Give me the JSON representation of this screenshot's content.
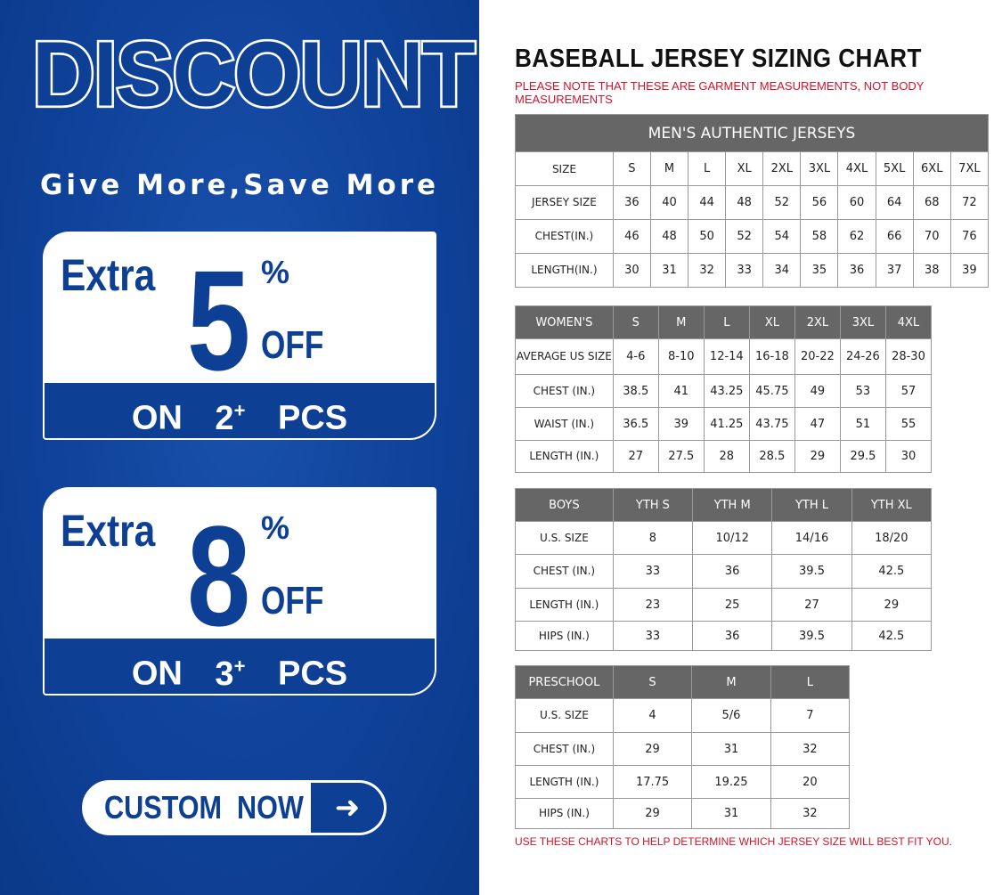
{
  "promo": {
    "headline": "DISCOUNT",
    "slogan": "Give More,Save More",
    "offers": [
      {
        "extra": "Extra",
        "amount": "5",
        "percent": "%",
        "off": "OFF",
        "on": "ON",
        "qty": "2",
        "plus": "+",
        "pcs": "PCS"
      },
      {
        "extra": "Extra",
        "amount": "8",
        "percent": "%",
        "off": "OFF",
        "on": "ON",
        "qty": "3",
        "plus": "+",
        "pcs": "PCS"
      }
    ],
    "cta_label": "CUSTOM NOW",
    "cta_icon": "arrow-right-icon",
    "brand_color": "#0d3f94"
  },
  "chart": {
    "title": "BASEBALL JERSEY SIZING CHART",
    "note": "PLEASE NOTE THAT THESE ARE GARMENT MEASUREMENTS, NOT BODY MEASUREMENTS",
    "footer": "USE THESE CHARTS TO HELP DETERMINE WHICH JERSEY SIZE WILL BEST FIT YOU.",
    "note_color": "#d0142b",
    "tables": [
      {
        "caption": "MEN'S AUTHENTIC JERSEYS",
        "header": [
          "SIZE",
          "S",
          "M",
          "L",
          "XL",
          "2XL",
          "3XL",
          "4XL",
          "5XL",
          "6XL",
          "7XL"
        ],
        "rows": [
          [
            "JERSEY SIZE",
            "36",
            "40",
            "44",
            "48",
            "52",
            "56",
            "60",
            "64",
            "68",
            "72"
          ],
          [
            "CHEST(IN.)",
            "46",
            "48",
            "50",
            "52",
            "54",
            "58",
            "62",
            "66",
            "70",
            "76"
          ],
          [
            "LENGTH(IN.)",
            "30",
            "31",
            "32",
            "33",
            "34",
            "35",
            "36",
            "37",
            "38",
            "39"
          ]
        ]
      },
      {
        "header": [
          "WOMEN'S",
          "S",
          "M",
          "L",
          "XL",
          "2XL",
          "3XL",
          "4XL"
        ],
        "rows": [
          [
            "AVERAGE US SIZE",
            "4-6",
            "8-10",
            "12-14",
            "16-18",
            "20-22",
            "24-26",
            "28-30"
          ],
          [
            "CHEST (IN.)",
            "38.5",
            "41",
            "43.25",
            "45.75",
            "49",
            "53",
            "57"
          ],
          [
            "WAIST (IN.)",
            "36.5",
            "39",
            "41.25",
            "43.75",
            "47",
            "51",
            "55"
          ],
          [
            "LENGTH (IN.)",
            "27",
            "27.5",
            "28",
            "28.5",
            "29",
            "29.5",
            "30"
          ]
        ]
      },
      {
        "header": [
          "BOYS",
          "YTH S",
          "YTH M",
          "YTH L",
          "YTH XL"
        ],
        "rows": [
          [
            "U.S. SIZE",
            "8",
            "10/12",
            "14/16",
            "18/20"
          ],
          [
            "CHEST (IN.)",
            "33",
            "36",
            "39.5",
            "42.5"
          ],
          [
            "LENGTH (IN.)",
            "23",
            "25",
            "27",
            "29"
          ],
          [
            "HIPS (IN.)",
            "33",
            "36",
            "39.5",
            "42.5"
          ]
        ]
      },
      {
        "header": [
          "PRESCHOOL",
          "S",
          "M",
          "L"
        ],
        "rows": [
          [
            "U.S. SIZE",
            "4",
            "5/6",
            "7"
          ],
          [
            "CHEST (IN.)",
            "29",
            "31",
            "32"
          ],
          [
            "LENGTH (IN.)",
            "17.75",
            "19.25",
            "20"
          ],
          [
            "HIPS (IN.)",
            "29",
            "31",
            "32"
          ]
        ]
      }
    ]
  }
}
